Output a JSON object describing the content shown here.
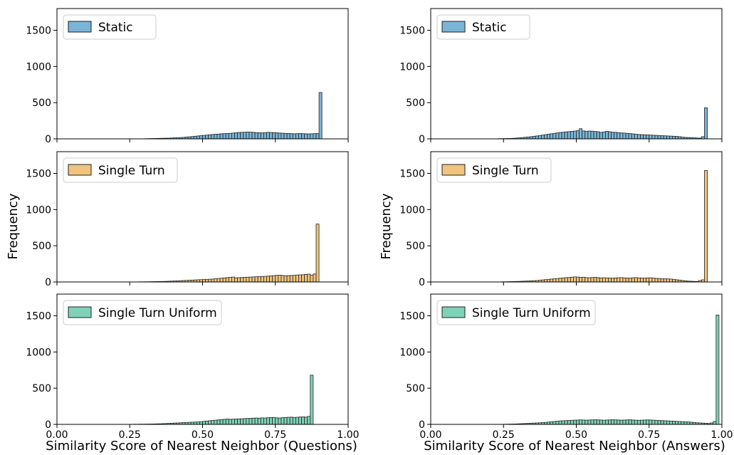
{
  "figure": {
    "ylabel": "Frequency",
    "columns": [
      {
        "xlabel": "Similarity Score of Nearest Neighbor (Questions)"
      },
      {
        "xlabel": "Similarity Score of Nearest Neighbor (Answers)"
      }
    ]
  },
  "colors": {
    "static": "#7ab4d6",
    "single_turn": "#f0c47e",
    "single_turn_uniform": "#7fd2b8",
    "edge": "#222222"
  },
  "chart_data": [
    {
      "type": "bar",
      "legend": "Static",
      "legend_position": "upper-left",
      "color_key": "static",
      "xlim": [
        0,
        1
      ],
      "ylim": [
        0,
        1800
      ],
      "xticks": [
        0.0,
        0.25,
        0.5,
        0.75,
        1.0
      ],
      "yticks": [
        0,
        500,
        1000,
        1500
      ],
      "bin_start": 0.3,
      "bin_width": 0.01,
      "values": [
        2,
        3,
        4,
        5,
        6,
        7,
        8,
        9,
        10,
        12,
        14,
        16,
        18,
        20,
        25,
        28,
        32,
        36,
        40,
        44,
        48,
        52,
        56,
        60,
        64,
        66,
        70,
        72,
        74,
        76,
        80,
        84,
        88,
        90,
        92,
        94,
        92,
        90,
        86,
        84,
        82,
        86,
        90,
        88,
        86,
        84,
        80,
        78,
        76,
        74,
        72,
        70,
        72,
        74,
        72,
        70,
        68,
        70,
        72,
        74,
        640
      ]
    },
    {
      "type": "bar",
      "legend": "Static",
      "legend_position": "upper-left",
      "color_key": "static",
      "xlim": [
        0,
        1
      ],
      "ylim": [
        0,
        1800
      ],
      "xticks": [
        0.0,
        0.25,
        0.5,
        0.75,
        1.0
      ],
      "yticks": [
        0,
        500,
        1000,
        1500
      ],
      "bin_start": 0.23,
      "bin_width": 0.01,
      "values": [
        3,
        3,
        4,
        5,
        6,
        8,
        10,
        14,
        18,
        22,
        26,
        30,
        36,
        40,
        46,
        52,
        58,
        64,
        70,
        76,
        82,
        88,
        92,
        96,
        100,
        104,
        108,
        112,
        140,
        110,
        105,
        108,
        106,
        102,
        98,
        88,
        96,
        104,
        98,
        92,
        90,
        86,
        82,
        80,
        76,
        72,
        68,
        64,
        60,
        58,
        56,
        54,
        52,
        50,
        48,
        46,
        44,
        42,
        40,
        38,
        36,
        34,
        30,
        24,
        20,
        18,
        16,
        14,
        12,
        10,
        30,
        430
      ]
    },
    {
      "type": "bar",
      "legend": "Single Turn",
      "legend_position": "upper-left",
      "color_key": "single_turn",
      "xlim": [
        0,
        1
      ],
      "ylim": [
        0,
        1800
      ],
      "xticks": [
        0.0,
        0.25,
        0.5,
        0.75,
        1.0
      ],
      "yticks": [
        0,
        500,
        1000,
        1500
      ],
      "bin_start": 0.28,
      "bin_width": 0.01,
      "values": [
        2,
        2,
        3,
        3,
        4,
        5,
        6,
        6,
        7,
        8,
        10,
        12,
        14,
        16,
        18,
        20,
        22,
        24,
        26,
        28,
        30,
        32,
        34,
        36,
        38,
        40,
        44,
        48,
        52,
        56,
        60,
        64,
        68,
        56,
        60,
        62,
        64,
        66,
        68,
        70,
        72,
        74,
        76,
        78,
        80,
        84,
        88,
        92,
        94,
        90,
        86,
        88,
        90,
        92,
        96,
        98,
        100,
        104,
        108,
        96,
        110,
        800
      ]
    },
    {
      "type": "bar",
      "legend": "Single Turn",
      "legend_position": "upper-left",
      "color_key": "single_turn",
      "xlim": [
        0,
        1
      ],
      "ylim": [
        0,
        1800
      ],
      "xticks": [
        0.0,
        0.25,
        0.5,
        0.75,
        1.0
      ],
      "yticks": [
        0,
        500,
        1000,
        1500
      ],
      "bin_start": 0.24,
      "bin_width": 0.01,
      "values": [
        2,
        3,
        4,
        5,
        6,
        7,
        8,
        10,
        12,
        14,
        16,
        18,
        20,
        24,
        28,
        32,
        36,
        40,
        44,
        48,
        52,
        56,
        60,
        62,
        66,
        70,
        68,
        64,
        66,
        60,
        58,
        62,
        64,
        60,
        56,
        58,
        56,
        54,
        52,
        56,
        58,
        60,
        56,
        54,
        52,
        58,
        60,
        56,
        54,
        52,
        56,
        58,
        54,
        50,
        48,
        46,
        44,
        42,
        40,
        36,
        30,
        26,
        20,
        16,
        12,
        10,
        8,
        6,
        20,
        30,
        1540
      ]
    },
    {
      "type": "bar",
      "legend": "Single Turn Uniform",
      "legend_position": "upper-left",
      "color_key": "single_turn_uniform",
      "xlim": [
        0,
        1
      ],
      "ylim": [
        0,
        1800
      ],
      "xticks": [
        0.0,
        0.25,
        0.5,
        0.75,
        1.0
      ],
      "yticks": [
        0,
        500,
        1000,
        1500
      ],
      "bin_start": 0.26,
      "bin_width": 0.01,
      "values": [
        2,
        2,
        3,
        3,
        4,
        4,
        5,
        6,
        7,
        8,
        10,
        12,
        14,
        16,
        18,
        20,
        22,
        24,
        26,
        28,
        30,
        32,
        34,
        38,
        42,
        46,
        50,
        54,
        58,
        62,
        66,
        70,
        74,
        70,
        72,
        74,
        76,
        78,
        80,
        82,
        84,
        86,
        88,
        86,
        90,
        88,
        92,
        94,
        96,
        90,
        88,
        92,
        94,
        98,
        100,
        96,
        98,
        102,
        104,
        100,
        110,
        680
      ]
    },
    {
      "type": "bar",
      "legend": "Single Turn Uniform",
      "legend_position": "upper-left",
      "color_key": "single_turn_uniform",
      "xlim": [
        0,
        1
      ],
      "ylim": [
        0,
        1800
      ],
      "xticks": [
        0.0,
        0.25,
        0.5,
        0.75,
        1.0
      ],
      "yticks": [
        0,
        500,
        1000,
        1500
      ],
      "bin_start": 0.25,
      "bin_width": 0.01,
      "values": [
        2,
        3,
        4,
        5,
        6,
        8,
        10,
        12,
        14,
        16,
        18,
        20,
        22,
        24,
        28,
        32,
        36,
        40,
        44,
        48,
        50,
        52,
        54,
        56,
        58,
        60,
        62,
        60,
        58,
        60,
        62,
        64,
        62,
        60,
        58,
        60,
        62,
        64,
        62,
        60,
        58,
        60,
        62,
        64,
        60,
        58,
        56,
        58,
        60,
        62,
        60,
        58,
        56,
        54,
        52,
        50,
        48,
        46,
        44,
        42,
        40,
        38,
        36,
        34,
        30,
        26,
        22,
        20,
        18,
        16,
        12,
        20,
        40,
        1510
      ]
    }
  ]
}
